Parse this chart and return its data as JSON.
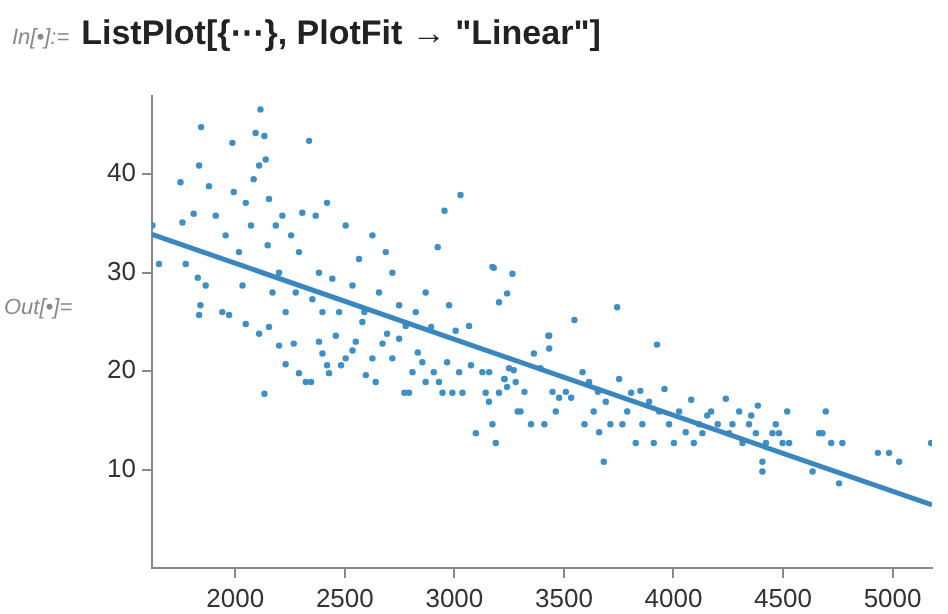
{
  "chart_data": {
    "type": "scatter",
    "title": "ListPlot[{⋯}, PlotFit → \"Linear\"]",
    "annotations": [
      "In[•]:=",
      "Out[•]="
    ],
    "xlim": [
      1620,
      5180
    ],
    "xticks": [
      2000,
      2500,
      3000,
      3500,
      4000,
      4500,
      5000
    ],
    "ylim": [
      0,
      48
    ],
    "yticks": [
      10,
      20,
      30,
      40
    ],
    "grid": false,
    "legend": false,
    "series": [
      {
        "type": "scatter",
        "color": "#3d8fc6",
        "marker": "circle",
        "x": [
          1622,
          1652,
          1750,
          1759,
          1774,
          1810,
          1829,
          1835,
          1844,
          1841,
          1865,
          1880,
          1911,
          1941,
          1956,
          1987,
          1993,
          2017,
          2033,
          2048,
          2072,
          2084,
          2093,
          2109,
          2115,
          2133,
          2139,
          2148,
          2154,
          2170,
          2185,
          2200,
          2215,
          2230,
          2255,
          2276,
          2291,
          2306,
          2337,
          2352,
          2367,
          2382,
          2398,
          2419,
          2443,
          2474,
          2504,
          2535,
          2565,
          2589,
          2626,
          2656,
          2687,
          2717,
          2748,
          2778,
          2824,
          2869,
          2924,
          2955,
          2976,
          3028,
          3067,
          3174,
          3204,
          3241,
          3265,
          1835,
          1972,
          2048,
          2109,
          2133,
          2154,
          2200,
          2230,
          2267,
          2291,
          2322,
          2346,
          2382,
          2398,
          2419,
          2428,
          2459,
          2483,
          2504,
          2535,
          2550,
          2580,
          2596,
          2626,
          2641,
          2672,
          2693,
          2717,
          2748,
          2772,
          2793,
          2809,
          2833,
          2854,
          2869,
          2894,
          2906,
          2930,
          2946,
          2967,
          2991,
          3006,
          3022,
          3037,
          3076,
          3098,
          3128,
          3143,
          3158,
          3174,
          3189,
          3204,
          3228,
          3241,
          3271,
          3289,
          3180,
          3548,
          3743,
          3433,
          3433,
          3925,
          3159,
          3229,
          3250,
          3280,
          3302,
          3320,
          3350,
          3363,
          3393,
          3411,
          3429,
          3448,
          3463,
          3478,
          3509,
          3533,
          3585,
          3594,
          3615,
          3636,
          3655,
          3661,
          3682,
          3691,
          3712,
          3752,
          3767,
          3789,
          3807,
          3828,
          3849,
          3858,
          3889,
          3910,
          3935,
          3959,
          3980,
          4002,
          4026,
          4056,
          4081,
          4093,
          4117,
          4132,
          4154,
          4172,
          4202,
          4239,
          4254,
          4269,
          4300,
          4315,
          4345,
          4355,
          4376,
          4385,
          4406,
          4406,
          4422,
          4452,
          4467,
          4482,
          4498,
          4519,
          4528,
          4635,
          4665,
          4680,
          4695,
          4720,
          4756,
          4771,
          4933,
          4984,
          5030,
          5176
        ],
        "values": [
          34.8,
          30.9,
          39.2,
          35.1,
          30.9,
          36.0,
          29.5,
          40.9,
          44.8,
          26.7,
          28.7,
          38.8,
          35.8,
          26.0,
          33.8,
          43.2,
          38.2,
          32.1,
          28.7,
          37.1,
          34.8,
          39.5,
          44.2,
          40.9,
          46.6,
          43.9,
          41.5,
          32.8,
          37.5,
          28.0,
          34.8,
          30.0,
          35.8,
          26.0,
          33.8,
          28.0,
          32.1,
          36.1,
          43.4,
          27.3,
          35.8,
          30.0,
          26.0,
          37.1,
          29.4,
          26.0,
          34.8,
          28.7,
          31.4,
          26.0,
          33.8,
          28.0,
          32.1,
          30.0,
          26.7,
          24.6,
          26.0,
          28.0,
          32.6,
          36.3,
          26.7,
          37.9,
          24.6,
          30.6,
          27.0,
          27.9,
          29.9,
          25.7,
          25.7,
          24.8,
          23.8,
          17.7,
          24.5,
          22.6,
          20.7,
          22.8,
          19.8,
          18.9,
          18.9,
          23.0,
          21.8,
          20.6,
          19.8,
          23.6,
          20.6,
          21.3,
          22.1,
          23.0,
          25.0,
          19.6,
          21.3,
          18.9,
          22.8,
          23.8,
          21.3,
          23.3,
          17.8,
          17.8,
          19.9,
          21.9,
          20.9,
          18.9,
          24.5,
          19.9,
          18.9,
          17.8,
          20.9,
          17.8,
          24.1,
          19.9,
          17.8,
          20.6,
          13.7,
          19.9,
          17.8,
          16.9,
          14.6,
          12.7,
          17.8,
          19.2,
          18.4,
          20.1,
          15.9,
          30.5,
          25.2,
          26.5,
          23.6,
          22.3,
          22.7,
          19.9,
          19.2,
          20.3,
          18.9,
          15.9,
          17.9,
          14.6,
          21.8,
          20.3,
          14.6,
          23.6,
          17.9,
          15.9,
          17.3,
          17.9,
          17.3,
          19.9,
          14.6,
          18.9,
          15.9,
          17.9,
          13.8,
          10.8,
          16.9,
          14.6,
          19.2,
          14.6,
          15.9,
          17.8,
          12.7,
          18.0,
          14.6,
          16.9,
          12.7,
          15.9,
          18.2,
          14.6,
          12.7,
          15.9,
          13.8,
          17.1,
          12.7,
          14.6,
          13.7,
          15.5,
          15.9,
          14.6,
          17.2,
          13.7,
          14.6,
          15.9,
          12.7,
          14.6,
          15.5,
          13.7,
          16.5,
          10.8,
          9.8,
          12.7,
          13.7,
          14.6,
          13.7,
          12.7,
          15.9,
          12.7,
          9.8,
          13.7,
          13.7,
          15.9,
          12.7,
          8.6,
          12.7,
          11.7,
          11.7,
          10.8,
          12.7
        ]
      },
      {
        "type": "line",
        "color": "#3a87c0",
        "x": [
          1620,
          5180
        ],
        "values": [
          33.9,
          6.4
        ]
      }
    ]
  }
}
